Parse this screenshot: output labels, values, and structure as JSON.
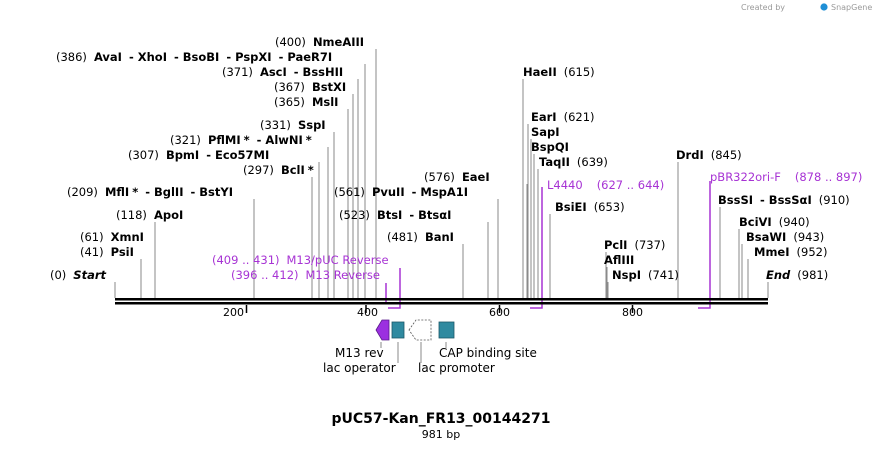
{
  "app": {
    "watermark_prefix": "Created by",
    "watermark_brand": "SnapGene",
    "colors": {
      "primer": "#a733d4",
      "feature_teal": "#2f8aa0",
      "ruler": "#000000",
      "connector": "#8a8a8a"
    }
  },
  "map": {
    "title": "pUC57-Kan_FR13_00144271",
    "length_label": "981 bp",
    "total_bp": 981,
    "ruler_ticks": [
      "200",
      "400",
      "600",
      "800"
    ],
    "sites": [
      {
        "text": [
          [
            "p",
            "(0)"
          ],
          [
            "it",
            "Start"
          ]
        ],
        "bp": 0
      },
      {
        "text": [
          [
            "p",
            "(41)"
          ],
          [
            "n",
            "PsiI"
          ]
        ],
        "bp": 41
      },
      {
        "text": [
          [
            "p",
            "(61)"
          ],
          [
            "n",
            "XmnI"
          ]
        ],
        "bp": 61
      },
      {
        "text": [
          [
            "p",
            "(118)"
          ],
          [
            "n",
            "ApoI"
          ]
        ],
        "bp": 118
      },
      {
        "text": [
          [
            "p",
            "(209)"
          ],
          [
            "n",
            "MflI"
          ],
          [
            "s",
            "*"
          ],
          [
            "n",
            "- BglII"
          ],
          [
            "n",
            "- BstYI"
          ]
        ],
        "bp": 209
      },
      {
        "text": [
          [
            "p",
            "(297)"
          ],
          [
            "n",
            "BclI"
          ],
          [
            "s",
            "*"
          ]
        ],
        "bp": 297
      },
      {
        "text": [
          [
            "p",
            "(307)"
          ],
          [
            "n",
            "BpmI"
          ],
          [
            "n",
            "- Eco57MI"
          ]
        ],
        "bp": 307
      },
      {
        "text": [
          [
            "p",
            "(321)"
          ],
          [
            "n",
            "PflMI"
          ],
          [
            "s",
            "*"
          ],
          [
            "n",
            "- AlwNI"
          ],
          [
            "s",
            "*"
          ]
        ],
        "bp": 321
      },
      {
        "text": [
          [
            "p",
            "(331)"
          ],
          [
            "n",
            "SspI"
          ]
        ],
        "bp": 331
      },
      {
        "text": [
          [
            "p",
            "(365)"
          ],
          [
            "n",
            "MslI"
          ]
        ],
        "bp": 365
      },
      {
        "text": [
          [
            "p",
            "(367)"
          ],
          [
            "n",
            "BstXI"
          ]
        ],
        "bp": 367
      },
      {
        "text": [
          [
            "p",
            "(371)"
          ],
          [
            "n",
            "AscI"
          ],
          [
            "n",
            "- BssHII"
          ]
        ],
        "bp": 371
      },
      {
        "text": [
          [
            "p",
            "(386)"
          ],
          [
            "n",
            "AvaI"
          ],
          [
            "n",
            "- XhoI"
          ],
          [
            "n",
            "- BsoBI"
          ],
          [
            "n",
            "- PspXI"
          ],
          [
            "n",
            "- PaeR7I"
          ]
        ],
        "bp": 386
      },
      {
        "text": [
          [
            "p",
            "(400)"
          ],
          [
            "n",
            "NmeAIII"
          ]
        ],
        "bp": 400
      },
      {
        "text": [
          [
            "p",
            "(481)"
          ],
          [
            "n",
            "BanI"
          ]
        ],
        "bp": 481
      },
      {
        "text": [
          [
            "p",
            "(523)"
          ],
          [
            "n",
            "BtsI"
          ],
          [
            "n",
            "- BtsαI"
          ]
        ],
        "bp": 523
      },
      {
        "text": [
          [
            "p",
            "(561)"
          ],
          [
            "n",
            "PvuII"
          ],
          [
            "n",
            "- MspA1I"
          ]
        ],
        "bp": 561
      },
      {
        "text": [
          [
            "p",
            "(576)"
          ],
          [
            "n",
            "EaeI"
          ]
        ],
        "bp": 576
      },
      {
        "text": [
          [
            "n",
            "HaeII"
          ],
          [
            "p",
            "(615)"
          ]
        ],
        "bp": 615
      },
      {
        "text": [
          [
            "n",
            "EarI"
          ],
          [
            "p",
            "(621)"
          ]
        ],
        "bp": 621
      },
      {
        "text": [
          [
            "n",
            "SapI"
          ]
        ],
        "bp": 621
      },
      {
        "text": [
          [
            "n",
            "BspQI"
          ]
        ],
        "bp": 621
      },
      {
        "text": [
          [
            "n",
            "TaqII"
          ],
          [
            "p",
            "(639)"
          ]
        ],
        "bp": 639
      },
      {
        "text": [
          [
            "n",
            "BsiEI"
          ],
          [
            "p",
            "(653)"
          ]
        ],
        "bp": 653
      },
      {
        "text": [
          [
            "n",
            "PclI"
          ],
          [
            "p",
            "(737)"
          ]
        ],
        "bp": 737
      },
      {
        "text": [
          [
            "n",
            "AflIII"
          ]
        ],
        "bp": 741
      },
      {
        "text": [
          [
            "n",
            "NspI"
          ],
          [
            "p",
            "(741)"
          ]
        ],
        "bp": 741
      },
      {
        "text": [
          [
            "n",
            "DrdI"
          ],
          [
            "p",
            "(845)"
          ]
        ],
        "bp": 845
      },
      {
        "text": [
          [
            "n",
            "BssSI"
          ],
          [
            "n",
            "- BssSαI"
          ],
          [
            "p",
            "(910)"
          ]
        ],
        "bp": 910
      },
      {
        "text": [
          [
            "n",
            "BciVI"
          ],
          [
            "p",
            "(940)"
          ]
        ],
        "bp": 940
      },
      {
        "text": [
          [
            "n",
            "BsaWI"
          ],
          [
            "p",
            "(943)"
          ]
        ],
        "bp": 943
      },
      {
        "text": [
          [
            "n",
            "MmeI"
          ],
          [
            "p",
            "(952)"
          ]
        ],
        "bp": 952
      },
      {
        "text": [
          [
            "it",
            "End"
          ],
          [
            "p",
            "(981)"
          ]
        ],
        "bp": 981
      }
    ],
    "primers": [
      {
        "name": "M13/pUC Reverse",
        "range": "(409 .. 431)"
      },
      {
        "name": "M13 Reverse",
        "range": "(396 .. 412)"
      },
      {
        "name": "L4440",
        "range": "(627 .. 644)"
      },
      {
        "name": "pBR322ori-F",
        "range": "(878 .. 897)"
      }
    ],
    "features": [
      {
        "label": "M13 rev"
      },
      {
        "label": "lac operator"
      },
      {
        "label": "lac promoter"
      },
      {
        "label": "CAP binding site"
      }
    ]
  }
}
